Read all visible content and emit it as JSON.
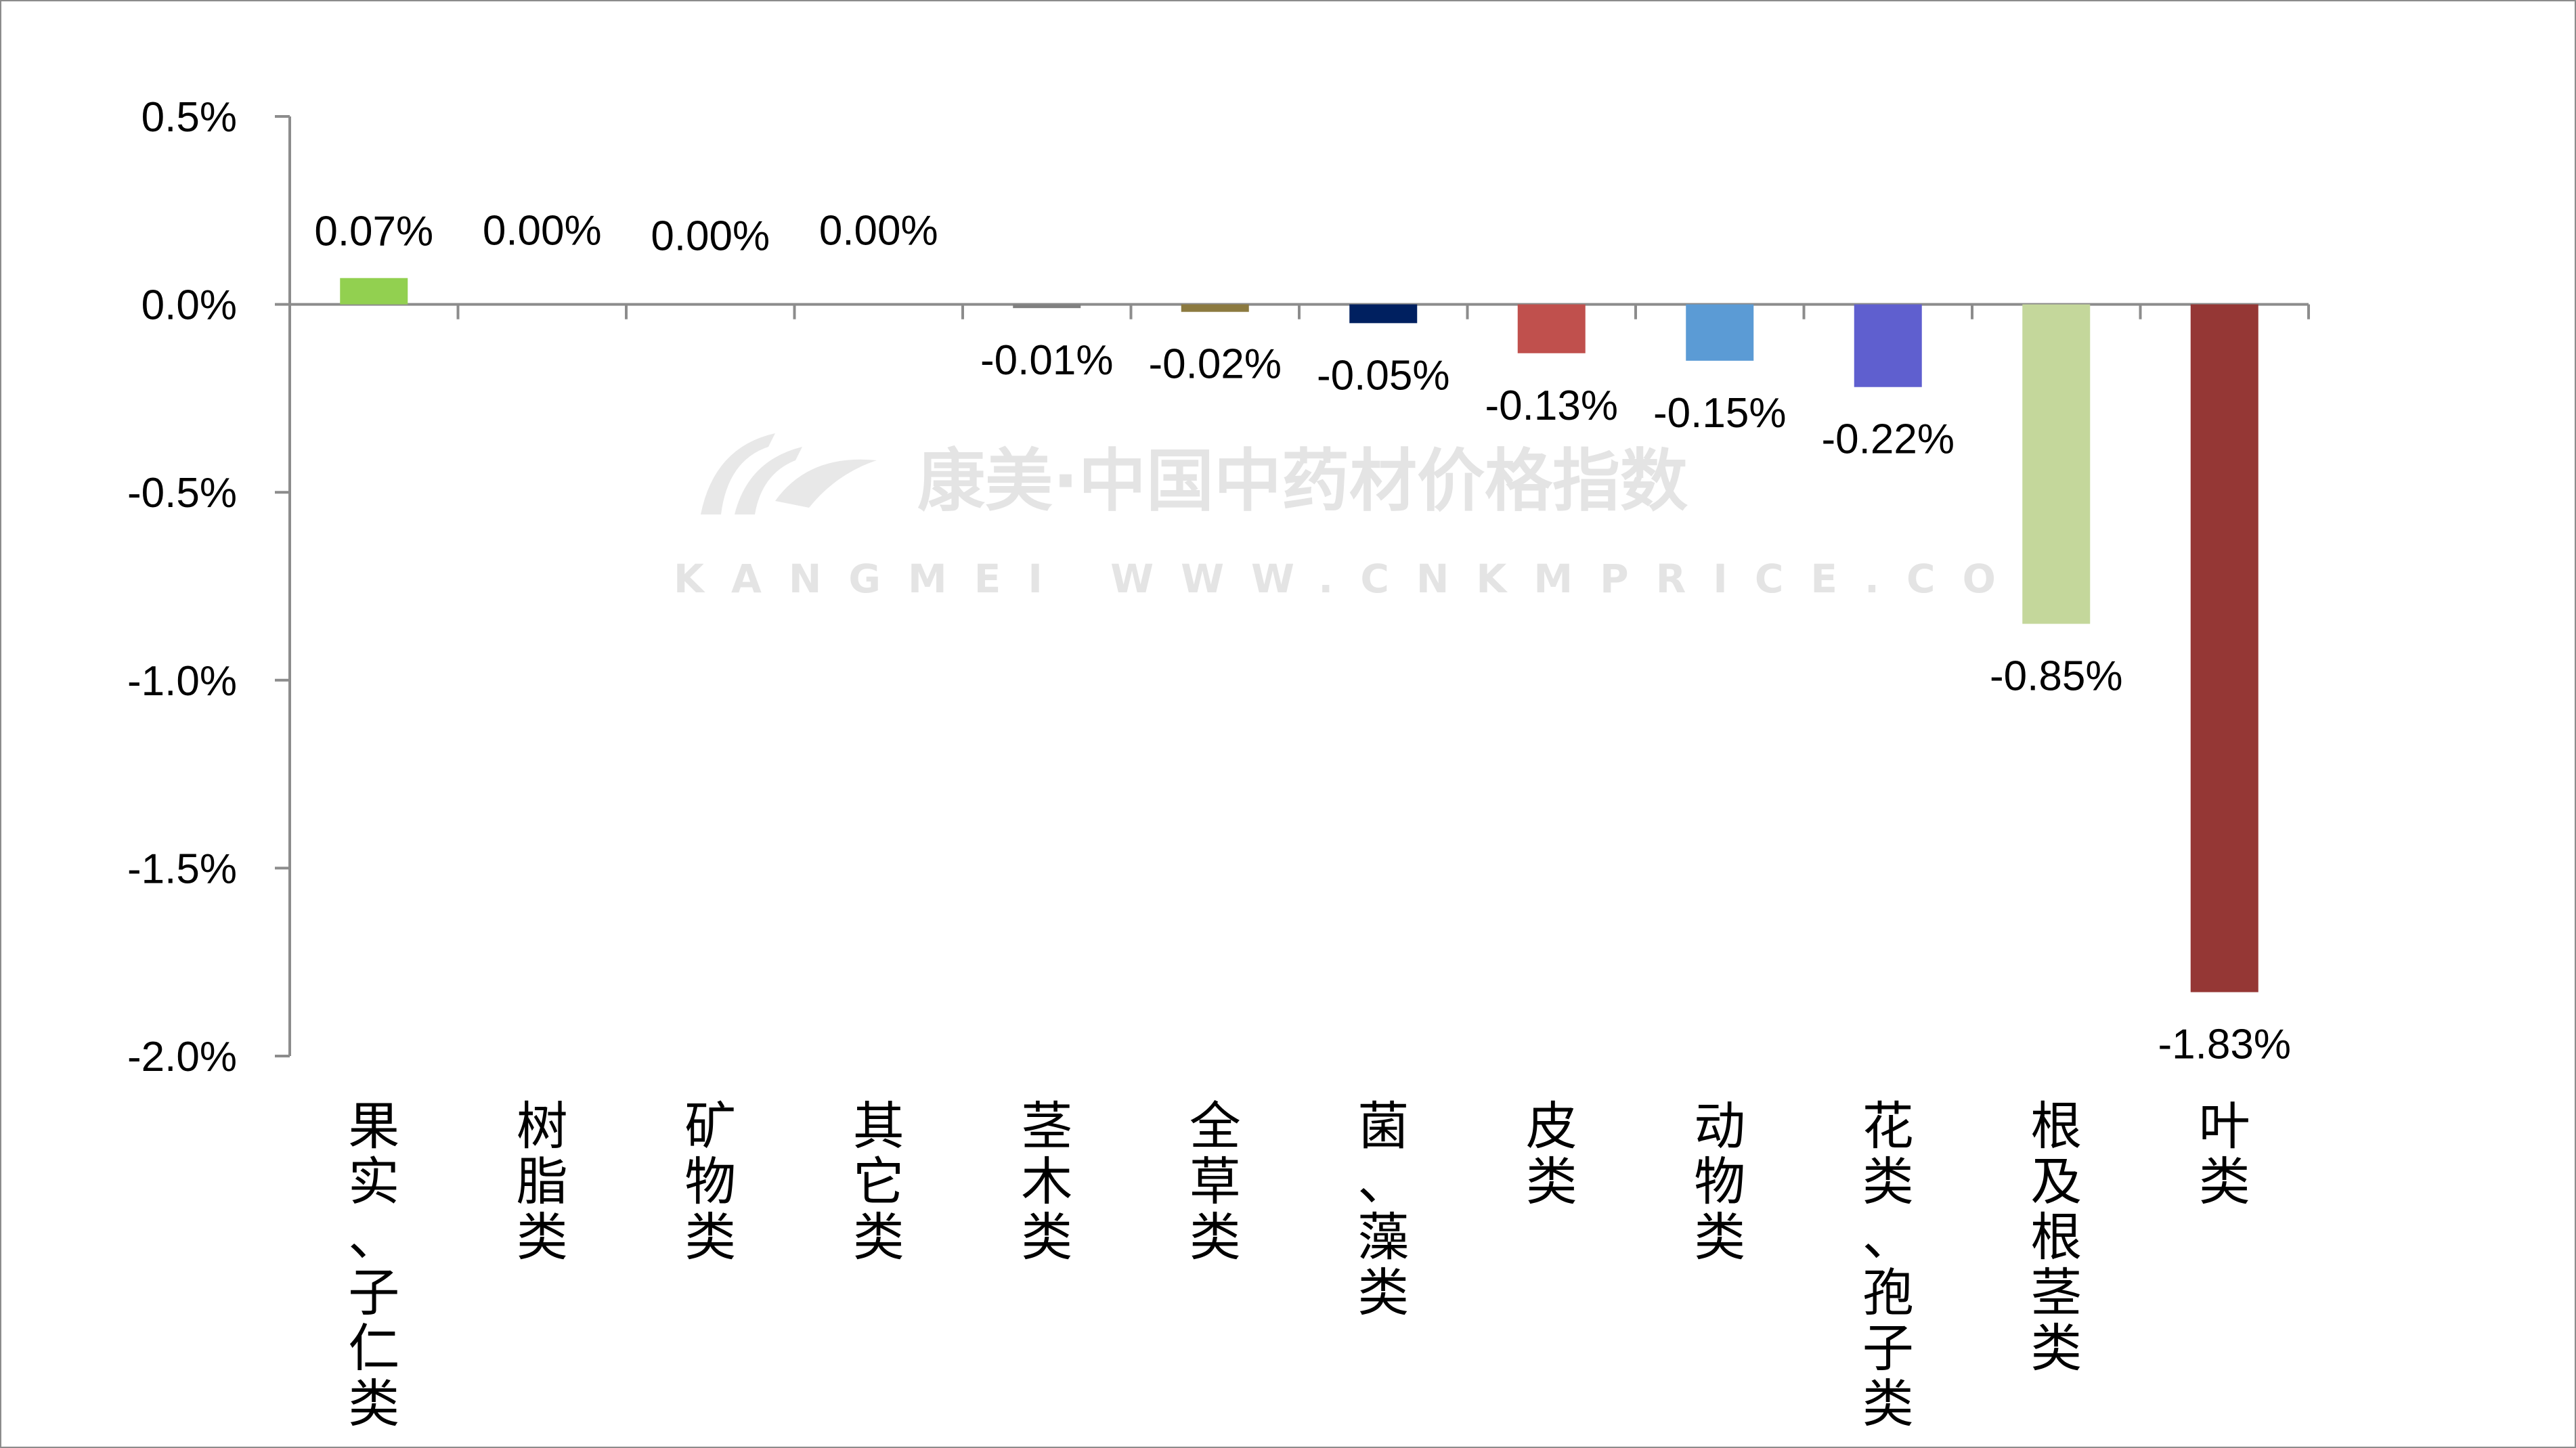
{
  "watermark": {
    "text": "康美·中国中药材价格指数",
    "sub": "KANGMEI WWW.CNKMPRICE.COM"
  },
  "chart_data": {
    "type": "bar",
    "categories": [
      "果实、子仁类",
      "树脂类",
      "矿物类",
      "其它类",
      "茎木类",
      "全草类",
      "菌、藻类",
      "皮类",
      "动物类",
      "花类、孢子类",
      "根及根茎类",
      "叶类"
    ],
    "values": [
      0.07,
      0.0,
      0.0,
      0.0,
      -0.01,
      -0.02,
      -0.05,
      -0.13,
      -0.15,
      -0.22,
      -0.85,
      -1.83
    ],
    "data_labels": [
      "0.07%",
      "0.00%",
      "0.00%",
      "0.00%",
      "-0.01%",
      "-0.02%",
      "-0.05%",
      "-0.13%",
      "-0.15%",
      "-0.22%",
      "-0.85%",
      "-1.83%"
    ],
    "colors": [
      "#92d050",
      "#c0c0c0",
      "#c0c0c0",
      "#c0c0c0",
      "#808080",
      "#8c7a40",
      "#002060",
      "#c0504d",
      "#5b9bd5",
      "#5f5fcf",
      "#c4d79b",
      "#953735"
    ],
    "ylim": [
      -2.0,
      0.5
    ],
    "yticks": [
      0.5,
      0.0,
      -0.5,
      -1.0,
      -1.5,
      -2.0
    ],
    "ytick_labels": [
      "0.5%",
      "0.0%",
      "-0.5%",
      "-1.0%",
      "-1.5%",
      "-2.0%"
    ],
    "title": "",
    "xlabel": "",
    "ylabel": "",
    "grid": false,
    "legend": "none"
  }
}
